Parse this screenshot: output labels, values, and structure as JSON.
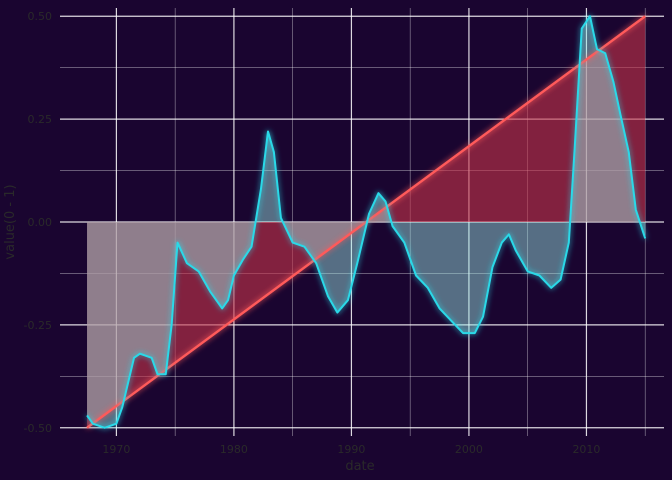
{
  "chart_data": {
    "type": "area",
    "xlabel": "date",
    "ylabel": "value(0 - 1)",
    "xlim": [
      1965.2,
      2016.6
    ],
    "ylim": [
      -0.52,
      0.52
    ],
    "x_ticks": [
      1970,
      1980,
      1990,
      2000,
      2010
    ],
    "x_tick_labels": [
      "1970",
      "1980",
      "1990",
      "2000",
      "2010"
    ],
    "y_ticks": [
      -0.5,
      -0.25,
      0.0,
      0.25,
      0.5
    ],
    "y_tick_labels": [
      "-0.50",
      "-0.25",
      "0.00",
      "0.25",
      "0.50"
    ],
    "grid": true,
    "series": [
      {
        "color": "#2ad9e8",
        "fill": "#9ff0ea",
        "values": [
          [
            1967.5,
            -0.47
          ],
          [
            1968.0,
            -0.49
          ],
          [
            1969.0,
            -0.5
          ],
          [
            1970.0,
            -0.49
          ],
          [
            1970.5,
            -0.45
          ],
          [
            1971.0,
            -0.39
          ],
          [
            1971.5,
            -0.33
          ],
          [
            1972.0,
            -0.32
          ],
          [
            1973.0,
            -0.33
          ],
          [
            1973.5,
            -0.37
          ],
          [
            1974.2,
            -0.37
          ],
          [
            1974.7,
            -0.25
          ],
          [
            1975.2,
            -0.05
          ],
          [
            1976.0,
            -0.1
          ],
          [
            1977.0,
            -0.12
          ],
          [
            1978.0,
            -0.17
          ],
          [
            1979.0,
            -0.21
          ],
          [
            1979.5,
            -0.19
          ],
          [
            1980.0,
            -0.13
          ],
          [
            1980.8,
            -0.09
          ],
          [
            1981.5,
            -0.06
          ],
          [
            1982.3,
            0.08
          ],
          [
            1982.9,
            0.22
          ],
          [
            1983.4,
            0.17
          ],
          [
            1984.0,
            0.01
          ],
          [
            1985.0,
            -0.05
          ],
          [
            1986.0,
            -0.06
          ],
          [
            1987.0,
            -0.1
          ],
          [
            1988.0,
            -0.18
          ],
          [
            1988.8,
            -0.22
          ],
          [
            1989.7,
            -0.19
          ],
          [
            1990.5,
            -0.1
          ],
          [
            1991.5,
            0.02
          ],
          [
            1992.3,
            0.07
          ],
          [
            1992.9,
            0.05
          ],
          [
            1993.5,
            -0.01
          ],
          [
            1994.5,
            -0.05
          ],
          [
            1995.5,
            -0.13
          ],
          [
            1996.5,
            -0.16
          ],
          [
            1997.5,
            -0.21
          ],
          [
            1998.5,
            -0.24
          ],
          [
            1999.5,
            -0.27
          ],
          [
            2000.5,
            -0.27
          ],
          [
            2001.2,
            -0.23
          ],
          [
            2002.0,
            -0.11
          ],
          [
            2002.8,
            -0.05
          ],
          [
            2003.4,
            -0.03
          ],
          [
            2004.0,
            -0.07
          ],
          [
            2005.0,
            -0.12
          ],
          [
            2006.0,
            -0.13
          ],
          [
            2007.0,
            -0.16
          ],
          [
            2007.8,
            -0.14
          ],
          [
            2008.5,
            -0.05
          ],
          [
            2009.0,
            0.18
          ],
          [
            2009.6,
            0.47
          ],
          [
            2010.3,
            0.5
          ],
          [
            2010.9,
            0.42
          ],
          [
            2011.6,
            0.41
          ],
          [
            2012.3,
            0.34
          ],
          [
            2012.9,
            0.26
          ],
          [
            2013.6,
            0.17
          ],
          [
            2014.2,
            0.03
          ],
          [
            2015.0,
            -0.04
          ]
        ]
      },
      {
        "color": "#ff5a5a",
        "fill": "#c8344a",
        "values": [
          [
            1967.5,
            -0.5
          ],
          [
            2015.0,
            0.5
          ]
        ]
      }
    ]
  }
}
